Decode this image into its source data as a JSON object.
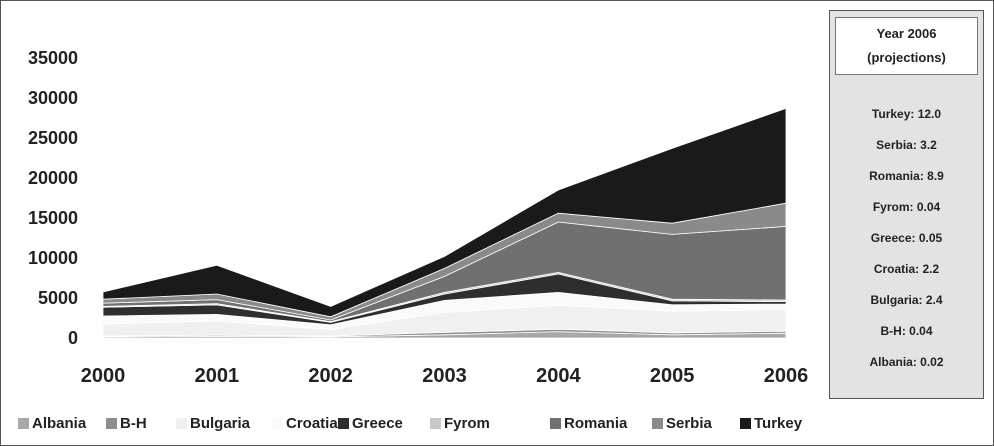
{
  "chart_data": {
    "type": "area",
    "stacked": true,
    "categories": [
      "2000",
      "2001",
      "2002",
      "2003",
      "2004",
      "2005",
      "2006"
    ],
    "y_ticks": [
      "35000",
      "30000",
      "25000",
      "20000",
      "15000",
      "10000",
      "5000",
      "0"
    ],
    "ylim": [
      0,
      35000
    ],
    "grid": false,
    "legend_position": "bottom",
    "series": [
      {
        "name": "Albania",
        "color": "#a8a8a8",
        "values": [
          150,
          200,
          150,
          400,
          800,
          400,
          600
        ]
      },
      {
        "name": "B-H",
        "color": "#8e8e8e",
        "values": [
          100,
          150,
          100,
          300,
          300,
          250,
          250
        ]
      },
      {
        "name": "Bulgaria",
        "color": "#f0f0f0",
        "values": [
          1500,
          1800,
          800,
          2500,
          3000,
          2700,
          2700
        ]
      },
      {
        "name": "Croatia",
        "color": "#fafafa",
        "values": [
          1000,
          800,
          600,
          1500,
          1600,
          800,
          700
        ]
      },
      {
        "name": "Greece",
        "color": "#2e2e2e",
        "values": [
          1100,
          1200,
          300,
          800,
          2300,
          500,
          300
        ]
      },
      {
        "name": "Fyrom",
        "color": "#c8c8c8",
        "values": [
          100,
          150,
          100,
          200,
          200,
          200,
          200
        ]
      },
      {
        "name": "Romania",
        "color": "#707070",
        "values": [
          400,
          500,
          200,
          2000,
          6300,
          8100,
          9200
        ]
      },
      {
        "name": "Serbia",
        "color": "#8a8a8a",
        "values": [
          500,
          700,
          400,
          1000,
          1100,
          1400,
          2900
        ]
      },
      {
        "name": "Turkey",
        "color": "#1a1a1a",
        "values": [
          900,
          3600,
          1300,
          1500,
          2900,
          9350,
          11850
        ]
      }
    ]
  },
  "projections": {
    "title_line1": "Year 2006",
    "title_line2": "(projections)",
    "items": [
      "Turkey: 12.0",
      "Serbia: 3.2",
      "Romania: 8.9",
      "Fyrom: 0.04",
      "Greece: 0.05",
      "Croatia: 2.2",
      "Bulgaria: 2.4",
      "B-H: 0.04",
      "Albania: 0.02"
    ]
  }
}
